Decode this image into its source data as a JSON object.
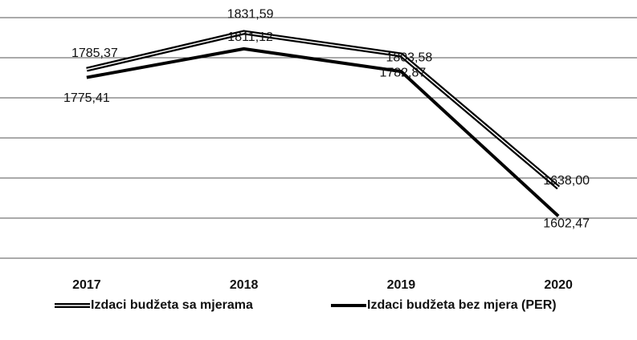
{
  "chart_data": {
    "type": "line",
    "categories": [
      "2017",
      "2018",
      "2019",
      "2020"
    ],
    "series": [
      {
        "name": "Izdaci budžeta sa mjerama",
        "color": "#000000",
        "values": [
          1785.37,
          1831.59,
          1803.58,
          1638.0
        ],
        "value_labels": [
          "1785,37",
          "1831,59",
          "1803,58",
          "1638,00"
        ]
      },
      {
        "name": "Izdaci budžeta bez mjera (PER)",
        "color": "#000000",
        "values": [
          1775.41,
          1811.12,
          1782.87,
          1602.47
        ],
        "value_labels": [
          "1775,41",
          "1811,12",
          "1782,87",
          "1602,47"
        ]
      }
    ],
    "ylim": [
      1550,
      1850
    ],
    "yticks": [
      1550,
      1600,
      1650,
      1700,
      1750,
      1800,
      1850
    ],
    "grid": true
  }
}
